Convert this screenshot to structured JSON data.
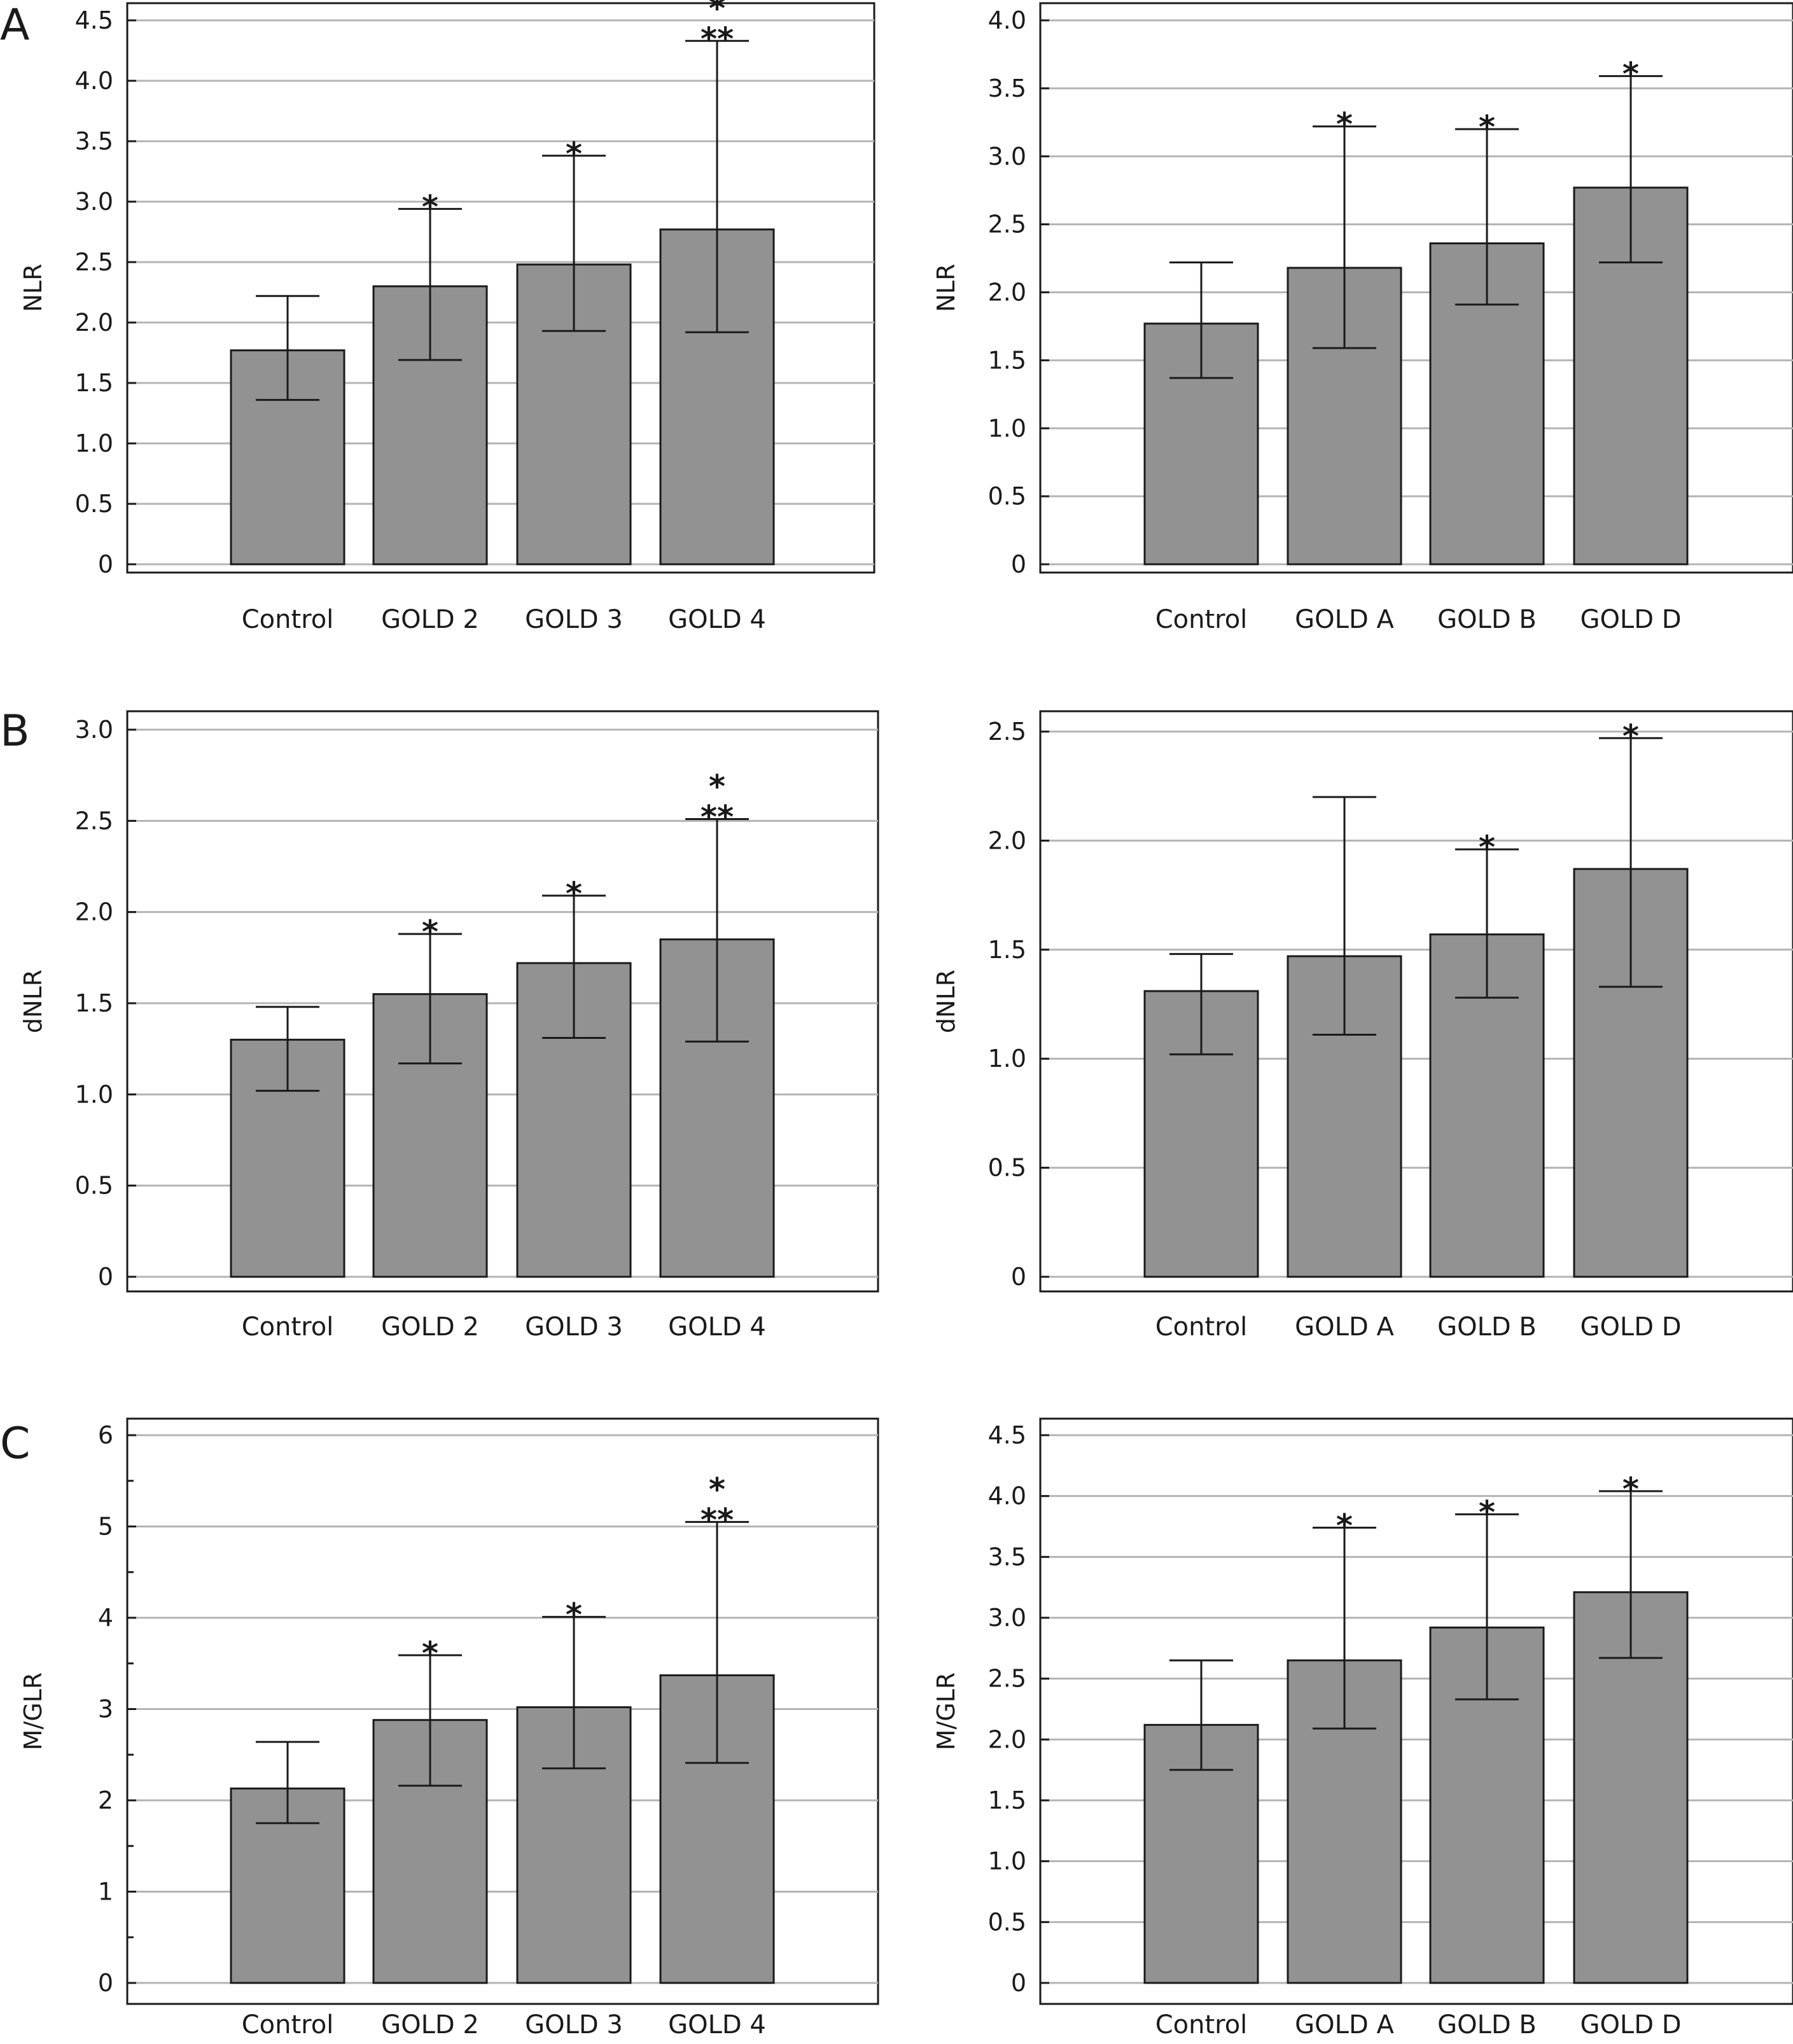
{
  "chart_data": [
    {
      "panel": "A",
      "type": "bar",
      "ylabel": "NLR",
      "categories": [
        "Control",
        "GOLD 2",
        "GOLD 3",
        "GOLD 4"
      ],
      "values": [
        1.77,
        2.3,
        2.48,
        2.77
      ],
      "error_low": [
        1.36,
        1.69,
        1.93,
        1.92
      ],
      "error_high": [
        2.22,
        2.94,
        3.38,
        4.33
      ],
      "significance": [
        "",
        "*",
        "*",
        "*\n**"
      ],
      "yticks": [
        "0",
        "0.5",
        "1.0",
        "1.5",
        "2.0",
        "2.5",
        "3.0",
        "3.5",
        "4.0",
        "4.5"
      ],
      "ylim": [
        0,
        4.5
      ],
      "grid": true,
      "bar_color": "#929292"
    },
    {
      "panel": "",
      "type": "bar",
      "ylabel": "NLR",
      "categories": [
        "Control",
        "GOLD A",
        "GOLD B",
        "GOLD D"
      ],
      "values": [
        1.77,
        2.18,
        2.36,
        2.77
      ],
      "error_low": [
        1.37,
        1.59,
        1.91,
        2.22
      ],
      "error_high": [
        2.22,
        3.22,
        3.2,
        3.59
      ],
      "significance": [
        "",
        "*",
        "*",
        "*"
      ],
      "yticks": [
        "0",
        "0.5",
        "1.0",
        "1.5",
        "2.0",
        "2.5",
        "3.0",
        "3.5",
        "4.0"
      ],
      "ylim": [
        0,
        4.0
      ],
      "grid": true,
      "bar_color": "#929292"
    },
    {
      "panel": "B",
      "type": "bar",
      "ylabel": "dNLR",
      "categories": [
        "Control",
        "GOLD 2",
        "GOLD 3",
        "GOLD 4"
      ],
      "values": [
        1.3,
        1.55,
        1.72,
        1.85
      ],
      "error_low": [
        1.02,
        1.17,
        1.31,
        1.29
      ],
      "error_high": [
        1.48,
        1.88,
        2.09,
        2.51
      ],
      "significance": [
        "",
        "*",
        "*",
        "*\n**"
      ],
      "yticks": [
        "0",
        "0.5",
        "1.0",
        "1.5",
        "2.0",
        "2.5",
        "3.0"
      ],
      "ylim": [
        0,
        3.0
      ],
      "grid": true,
      "bar_color": "#929292"
    },
    {
      "panel": "",
      "type": "bar",
      "ylabel": "dNLR",
      "categories": [
        "Control",
        "GOLD A",
        "GOLD B",
        "GOLD D"
      ],
      "values": [
        1.31,
        1.47,
        1.57,
        1.87
      ],
      "error_low": [
        1.02,
        1.11,
        1.28,
        1.33
      ],
      "error_high": [
        1.48,
        2.2,
        1.96,
        2.47
      ],
      "significance": [
        "",
        "",
        "*",
        "*"
      ],
      "yticks": [
        "0",
        "0.5",
        "1.0",
        "1.5",
        "2.0",
        "2.5"
      ],
      "ylim": [
        0,
        2.5
      ],
      "grid": true,
      "bar_color": "#929292"
    },
    {
      "panel": "C",
      "type": "bar",
      "ylabel": "M/GLR",
      "categories": [
        "Control",
        "GOLD 2",
        "GOLD 3",
        "GOLD 4"
      ],
      "values": [
        2.13,
        2.88,
        3.02,
        3.37
      ],
      "error_low": [
        1.75,
        2.16,
        2.35,
        2.41
      ],
      "error_high": [
        2.64,
        3.59,
        4.01,
        5.05
      ],
      "significance": [
        "",
        "*",
        "*",
        "*\n**"
      ],
      "yticks": [
        "0",
        "1",
        "2",
        "3",
        "4",
        "5",
        "6"
      ],
      "minor_ticks": true,
      "ylim": [
        0,
        6
      ],
      "grid": true,
      "bar_color": "#929292"
    },
    {
      "panel": "",
      "type": "bar",
      "ylabel": "M/GLR",
      "categories": [
        "Control",
        "GOLD A",
        "GOLD B",
        "GOLD D"
      ],
      "values": [
        2.12,
        2.65,
        2.92,
        3.21
      ],
      "error_low": [
        1.75,
        2.09,
        2.33,
        2.67
      ],
      "error_high": [
        2.65,
        3.74,
        3.85,
        4.04
      ],
      "significance": [
        "",
        "*",
        "*",
        "*"
      ],
      "yticks": [
        "0",
        "0.5",
        "1.0",
        "1.5",
        "2.0",
        "2.5",
        "3.0",
        "3.5",
        "4.0",
        "4.5"
      ],
      "ylim": [
        0,
        4.5
      ],
      "grid": true,
      "bar_color": "#929292"
    }
  ]
}
